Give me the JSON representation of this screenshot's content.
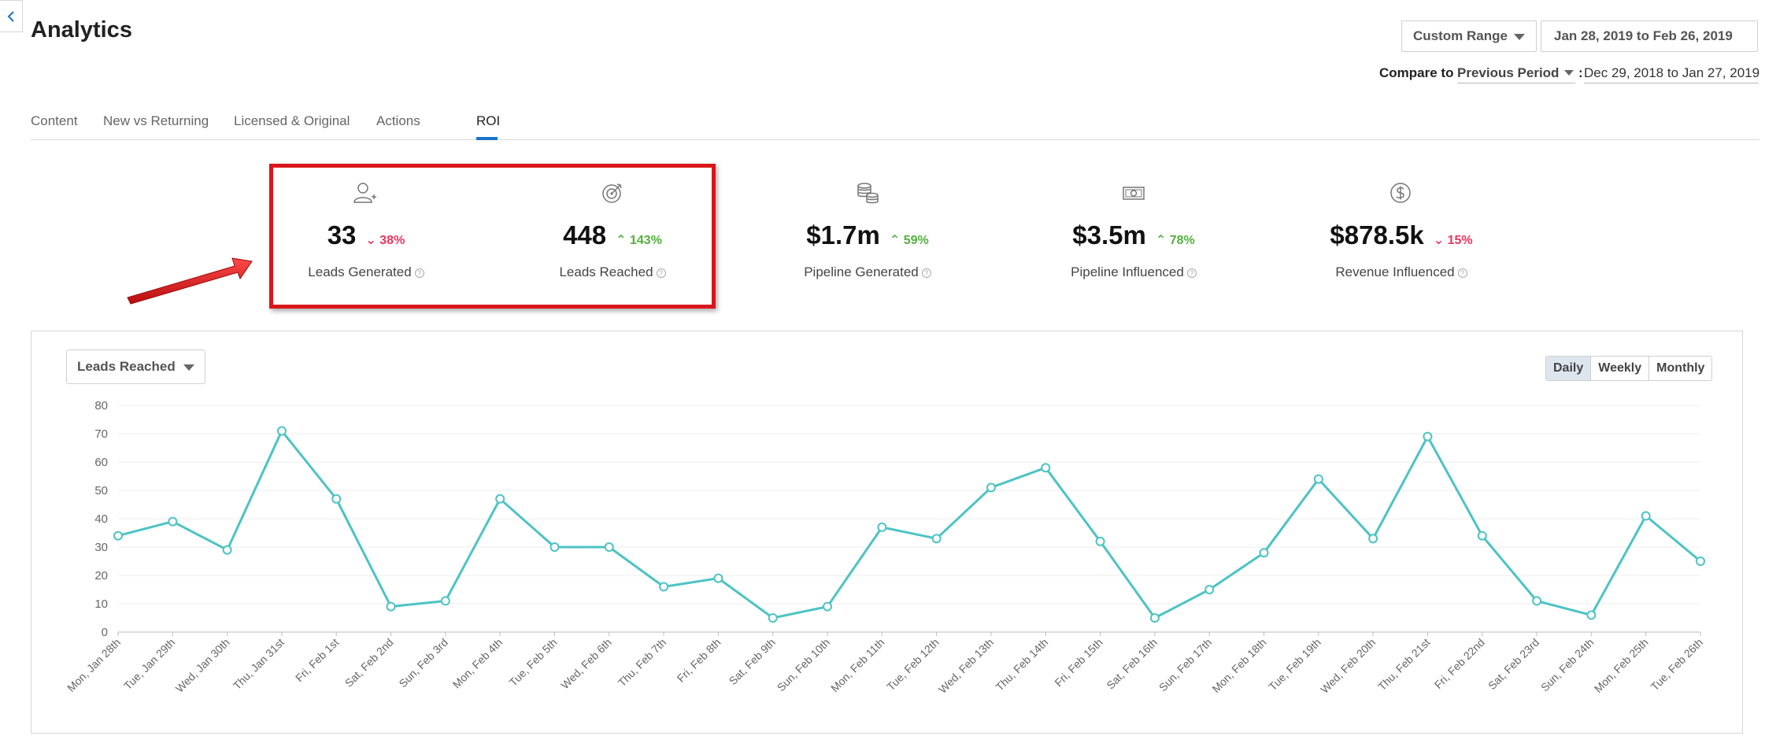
{
  "page": {
    "title": "Analytics"
  },
  "date_controls": {
    "range_type": "Custom Range",
    "date_range": "Jan 28, 2019 to Feb 26, 2019",
    "compare_label": "Compare to",
    "compare_value": "Previous Period",
    "compare_separator": ":",
    "compare_dates": "Dec 29, 2018 to Jan 27, 2019"
  },
  "tabs": [
    {
      "label": "Content"
    },
    {
      "label": "New vs Returning"
    },
    {
      "label": "Licensed & Original"
    },
    {
      "label": "Actions"
    },
    {
      "label": "ROI",
      "active": true
    }
  ],
  "metrics": [
    {
      "icon": "user-plus-icon",
      "value": "33",
      "change": "38%",
      "direction": "down",
      "label": "Leads Generated"
    },
    {
      "icon": "target-icon",
      "value": "448",
      "change": "143%",
      "direction": "up",
      "label": "Leads Reached"
    },
    {
      "icon": "coins-icon",
      "value": "$1.7m",
      "change": "59%",
      "direction": "up",
      "label": "Pipeline Generated"
    },
    {
      "icon": "banknote-icon",
      "value": "$3.5m",
      "change": "78%",
      "direction": "up",
      "label": "Pipeline Influenced"
    },
    {
      "icon": "dollar-circle-icon",
      "value": "$878.5k",
      "change": "15%",
      "direction": "down",
      "label": "Revenue Influenced"
    }
  ],
  "help_glyph": "?",
  "chart_controls": {
    "metric_select": "Leads Reached",
    "granularity": [
      "Daily",
      "Weekly",
      "Monthly"
    ],
    "active_granularity": "Daily"
  },
  "colors": {
    "line": "#4dc3c4",
    "highlight": "#d9171a",
    "arrow": "#e01c1c",
    "positive": "#52b13c",
    "negative": "#e8365d",
    "active_tab": "#1a73c9"
  },
  "chart_data": {
    "type": "line",
    "categories": [
      "Mon, Jan 28th",
      "Tue, Jan 29th",
      "Wed, Jan 30th",
      "Thu, Jan 31st",
      "Fri, Feb 1st",
      "Sat, Feb 2nd",
      "Sun, Feb 3rd",
      "Mon, Feb 4th",
      "Tue, Feb 5th",
      "Wed, Feb 6th",
      "Thu, Feb 7th",
      "Fri, Feb 8th",
      "Sat, Feb 9th",
      "Sun, Feb 10th",
      "Mon, Feb 11th",
      "Tue, Feb 12th",
      "Wed, Feb 13th",
      "Thu, Feb 14th",
      "Fri, Feb 15th",
      "Sat, Feb 16th",
      "Sun, Feb 17th",
      "Mon, Feb 18th",
      "Tue, Feb 19th",
      "Wed, Feb 20th",
      "Thu, Feb 21st",
      "Fri, Feb 22nd",
      "Sat, Feb 23rd",
      "Sun, Feb 24th",
      "Mon, Feb 25th",
      "Tue, Feb 26th"
    ],
    "series": [
      {
        "values": [
          34,
          39,
          29,
          71,
          47,
          9,
          11,
          47,
          30,
          30,
          16,
          19,
          5,
          9,
          37,
          33,
          51,
          58,
          32,
          5,
          15,
          28,
          54,
          33,
          69,
          34,
          11,
          6,
          41,
          25
        ]
      }
    ],
    "yticks": [
      0,
      10,
      20,
      30,
      40,
      50,
      60,
      70,
      80
    ],
    "ylim": [
      0,
      80
    ],
    "grid": true,
    "legend": "none"
  }
}
